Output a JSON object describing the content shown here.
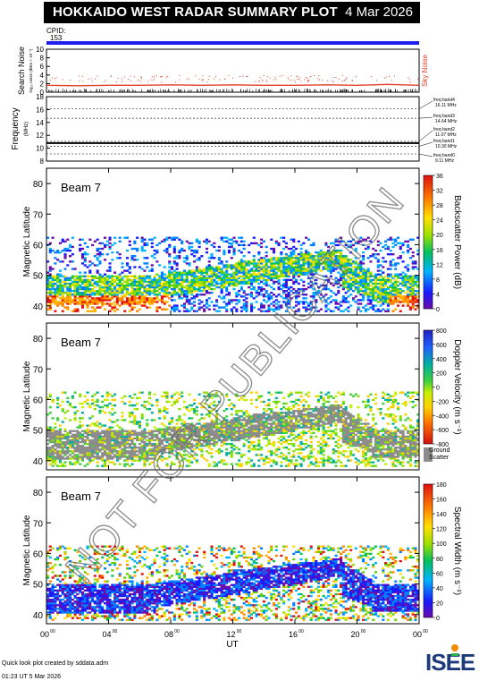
{
  "title": "HOKKAIDO WEST RADAR SUMMARY PLOT",
  "date": "4 Mar 2026",
  "cpid_label": "CPID:",
  "cpid_value": "153",
  "footer": {
    "credit": "Quick look plot created by sddata.adm",
    "timestamp": "01:23 UT  5 Mar 2026"
  },
  "watermark": "NOT FOR PUBLICATION",
  "logo_text": "ISEE",
  "colors": {
    "cpid_bar": "#1f1ff0",
    "sky_noise": "#e0402a",
    "ground_scatter": "#8c8c8c"
  },
  "chart_data": [
    {
      "type": "line",
      "id": "noise",
      "ylabel": "Search Noise",
      "ylabel_sub": "log₁₀ noise (dBm × 10⁻¹)",
      "ylim": [
        0,
        10
      ],
      "yticks": [
        "0",
        "2",
        "4",
        "6",
        "8",
        "10"
      ],
      "legend": "Sky Noise",
      "series": [
        {
          "name": "Sky Noise",
          "x": [
            0,
            2,
            4,
            6,
            8,
            10,
            12,
            14,
            16,
            18,
            20,
            21,
            22,
            23,
            24
          ],
          "values": [
            1.6,
            1.5,
            1.6,
            1.6,
            1.7,
            1.6,
            1.7,
            1.6,
            1.6,
            1.7,
            1.6,
            1.7,
            1.8,
            1.7,
            1.6
          ]
        }
      ]
    },
    {
      "type": "line",
      "id": "frequency",
      "ylabel": "Frequency",
      "ylabel_sub": "(MHz)",
      "ylim": [
        8,
        18
      ],
      "yticks": [
        "8",
        "10",
        "12",
        "14",
        "16",
        "18"
      ],
      "bands": [
        {
          "name": "freq band4",
          "freq": "16.11 MHz"
        },
        {
          "name": "freq band3",
          "freq": "14.64 MHz"
        },
        {
          "name": "freq band2",
          "freq": "11.07 MHz"
        },
        {
          "name": "freq band1",
          "freq": "10.30 MHz"
        },
        {
          "name": "freq band0",
          "freq": "9.11 MHz"
        }
      ],
      "band_values": [
        16.11,
        14.64,
        11.07,
        10.3,
        9.11
      ],
      "operating_freq": 10.8
    },
    {
      "type": "heatmap",
      "id": "power",
      "beam_label": "Beam  7",
      "ylabel": "Magnetic Latitude",
      "ylim": [
        37,
        85
      ],
      "yticks": [
        "40",
        "50",
        "60",
        "70",
        "80"
      ],
      "colorbar_label": "Backscatter Power (dB)",
      "colorbar_range": [
        0,
        36
      ],
      "colorbar_ticks": [
        "0",
        "4",
        "8",
        "12",
        "16",
        "20",
        "24",
        "28",
        "32",
        "36"
      ]
    },
    {
      "type": "heatmap",
      "id": "velocity",
      "beam_label": "Beam  7",
      "ylabel": "Magnetic Latitude",
      "ylim": [
        37,
        85
      ],
      "yticks": [
        "40",
        "50",
        "60",
        "70",
        "80"
      ],
      "colorbar_label": "Doppler Velocity (m s⁻¹)",
      "colorbar_range": [
        -800,
        800
      ],
      "colorbar_ticks": [
        "-800",
        "-600",
        "-400",
        "-200",
        "0",
        "200",
        "400",
        "600",
        "800"
      ],
      "gs_label_1": "Ground",
      "gs_label_2": "Scatter"
    },
    {
      "type": "heatmap",
      "id": "width",
      "beam_label": "Beam  7",
      "ylabel": "Magnetic Latitude",
      "ylim": [
        37,
        85
      ],
      "yticks": [
        "40",
        "50",
        "60",
        "70",
        "80"
      ],
      "colorbar_label": "Spectral Width (m s⁻¹)",
      "colorbar_range": [
        0,
        180
      ],
      "colorbar_ticks": [
        "0",
        "20",
        "40",
        "60",
        "80",
        "100",
        "120",
        "140",
        "160",
        "180"
      ]
    }
  ],
  "x_axis": {
    "label": "UT",
    "xlim": [
      0,
      24
    ],
    "ticks": [
      {
        "h": "00",
        "m": "00"
      },
      {
        "h": "04",
        "m": "00"
      },
      {
        "h": "08",
        "m": "00"
      },
      {
        "h": "12",
        "m": "00"
      },
      {
        "h": "16",
        "m": "00"
      },
      {
        "h": "20",
        "m": "00"
      },
      {
        "h": "00",
        "m": "00"
      }
    ]
  }
}
